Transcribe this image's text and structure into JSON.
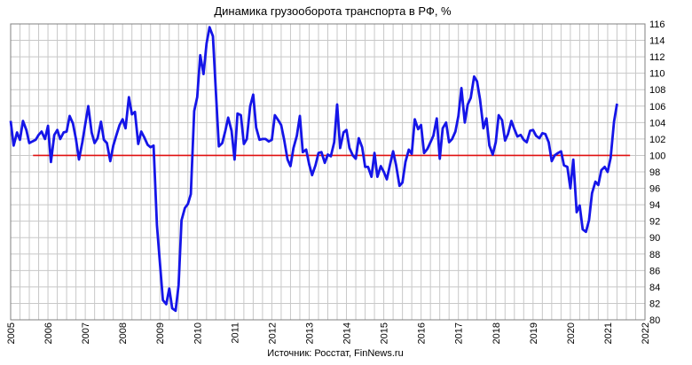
{
  "chart_data": {
    "type": "line",
    "title": "Динамика грузооборота транспорта в РФ, %",
    "source": "Источник: Росстат, FinNews.ru",
    "xlabel": "",
    "ylabel": "",
    "xlim": [
      2005,
      2022
    ],
    "ylim": [
      80,
      116
    ],
    "x_ticks": [
      "2005",
      "2006",
      "2007",
      "2008",
      "2009",
      "2010",
      "2011",
      "2012",
      "2013",
      "2014",
      "2015",
      "2016",
      "2017",
      "2018",
      "2019",
      "2020",
      "2021",
      "2022"
    ],
    "y_ticks": [
      "80",
      "82",
      "84",
      "86",
      "88",
      "90",
      "92",
      "94",
      "96",
      "98",
      "100",
      "102",
      "104",
      "106",
      "108",
      "110",
      "112",
      "114",
      "116"
    ],
    "y_axis_side": "right",
    "grid": true,
    "colors": {
      "series": "#1515e8",
      "reference": "#e01010",
      "grid": "#c8c8c8",
      "axis": "#808080"
    },
    "reference_line": {
      "y": 100,
      "x_start": 2005.6,
      "x_end": 2021.6
    },
    "series": [
      {
        "x": [
          2005.0,
          2005.08,
          2005.17,
          2005.25,
          2005.33,
          2005.42,
          2005.5,
          2005.58,
          2005.67,
          2005.75,
          2005.83,
          2005.92,
          2006.0,
          2006.08,
          2006.17,
          2006.25,
          2006.33,
          2006.42,
          2006.5,
          2006.58,
          2006.67,
          2006.75,
          2006.83,
          2006.92,
          2007.0,
          2007.08,
          2007.17,
          2007.25,
          2007.33,
          2007.42,
          2007.5,
          2007.58,
          2007.67,
          2007.75,
          2007.83,
          2007.92,
          2008.0,
          2008.08,
          2008.17,
          2008.25,
          2008.33,
          2008.42,
          2008.5,
          2008.58,
          2008.67,
          2008.75,
          2008.83,
          2008.92,
          2009.0,
          2009.08,
          2009.17,
          2009.25,
          2009.33,
          2009.42,
          2009.5,
          2009.58,
          2009.67,
          2009.75,
          2009.83,
          2009.92,
          2010.0,
          2010.08,
          2010.17,
          2010.25,
          2010.33,
          2010.42,
          2010.5,
          2010.58,
          2010.67,
          2010.75,
          2010.83,
          2010.92,
          2011.0,
          2011.08,
          2011.17,
          2011.25,
          2011.33,
          2011.42,
          2011.5,
          2011.58,
          2011.67,
          2011.75,
          2011.83,
          2011.92,
          2012.0,
          2012.08,
          2012.17,
          2012.25,
          2012.33,
          2012.42,
          2012.5,
          2012.58,
          2012.67,
          2012.75,
          2012.83,
          2012.92,
          2013.0,
          2013.08,
          2013.17,
          2013.25,
          2013.33,
          2013.42,
          2013.5,
          2013.58,
          2013.67,
          2013.75,
          2013.83,
          2013.92,
          2014.0,
          2014.08,
          2014.17,
          2014.25,
          2014.33,
          2014.42,
          2014.5,
          2014.58,
          2014.67,
          2014.75,
          2014.83,
          2014.92,
          2015.0,
          2015.08,
          2015.17,
          2015.25,
          2015.33,
          2015.42,
          2015.5,
          2015.58,
          2015.67,
          2015.75,
          2015.83,
          2015.92,
          2016.0,
          2016.08,
          2016.17,
          2016.25,
          2016.33,
          2016.42,
          2016.5,
          2016.58,
          2016.67,
          2016.75,
          2016.83,
          2016.92,
          2017.0,
          2017.08,
          2017.17,
          2017.25,
          2017.33,
          2017.42,
          2017.5,
          2017.58,
          2017.67,
          2017.75,
          2017.83,
          2017.92,
          2018.0,
          2018.08,
          2018.17,
          2018.25,
          2018.33,
          2018.42,
          2018.5,
          2018.58,
          2018.67,
          2018.75,
          2018.83,
          2018.92,
          2019.0,
          2019.08,
          2019.17,
          2019.25,
          2019.33,
          2019.42,
          2019.5,
          2019.58,
          2019.67,
          2019.75,
          2019.83,
          2019.92,
          2020.0,
          2020.08,
          2020.17,
          2020.25,
          2020.33,
          2020.42,
          2020.5,
          2020.58,
          2020.67,
          2020.75,
          2020.83,
          2020.92,
          2021.0,
          2021.08,
          2021.17,
          2021.25
        ],
        "values": [
          104.2,
          101.2,
          102.8,
          101.9,
          104.2,
          103.1,
          101.5,
          101.7,
          101.9,
          102.5,
          102.9,
          102.0,
          103.6,
          99.2,
          102.5,
          103.1,
          102.0,
          102.8,
          102.9,
          104.8,
          103.9,
          102.0,
          99.5,
          101.6,
          103.8,
          106.0,
          102.8,
          101.5,
          102.1,
          104.1,
          101.9,
          101.5,
          99.3,
          101.2,
          102.4,
          103.7,
          104.4,
          103.3,
          107.1,
          105.0,
          105.3,
          101.4,
          102.9,
          102.2,
          101.3,
          101.0,
          101.2,
          91.5,
          87.0,
          82.4,
          81.9,
          83.8,
          81.4,
          81.1,
          84.2,
          92.1,
          93.6,
          94.1,
          95.3,
          105.4,
          107.1,
          112.2,
          109.9,
          113.6,
          115.6,
          114.5,
          107.8,
          101.1,
          101.5,
          102.9,
          104.6,
          103.0,
          99.5,
          105.1,
          104.9,
          101.4,
          102.0,
          106.0,
          107.4,
          103.4,
          101.9,
          102.0,
          102.0,
          101.7,
          101.9,
          104.9,
          104.3,
          103.7,
          101.9,
          99.5,
          98.7,
          100.9,
          102.4,
          104.8,
          100.4,
          100.7,
          98.9,
          97.6,
          98.8,
          100.3,
          100.4,
          99.1,
          100.1,
          99.9,
          101.6,
          106.2,
          100.9,
          102.8,
          103.1,
          100.9,
          100.0,
          99.6,
          102.1,
          101.0,
          98.6,
          98.6,
          97.4,
          100.3,
          97.4,
          98.7,
          98.0,
          97.1,
          98.9,
          100.5,
          98.8,
          96.3,
          96.7,
          99.2,
          100.7,
          100.2,
          104.4,
          103.2,
          103.7,
          100.3,
          100.8,
          101.6,
          102.4,
          104.5,
          99.6,
          103.3,
          104.0,
          101.6,
          102.0,
          102.9,
          104.8,
          108.2,
          104.0,
          106.2,
          107.0,
          109.6,
          109.0,
          106.8,
          103.3,
          104.5,
          101.2,
          100.1,
          101.6,
          104.9,
          104.3,
          101.8,
          102.6,
          104.2,
          103.2,
          102.3,
          102.5,
          101.9,
          101.6,
          103.0,
          103.1,
          102.4,
          102.1,
          102.7,
          102.6,
          101.6,
          99.3,
          100.0,
          100.3,
          100.5,
          98.8,
          98.6,
          96.0,
          99.5,
          93.1,
          93.9,
          91.0,
          90.7,
          92.1,
          95.4,
          96.8,
          96.4,
          98.2,
          98.6,
          98.0,
          99.7,
          104.1,
          106.3
        ]
      }
    ]
  }
}
